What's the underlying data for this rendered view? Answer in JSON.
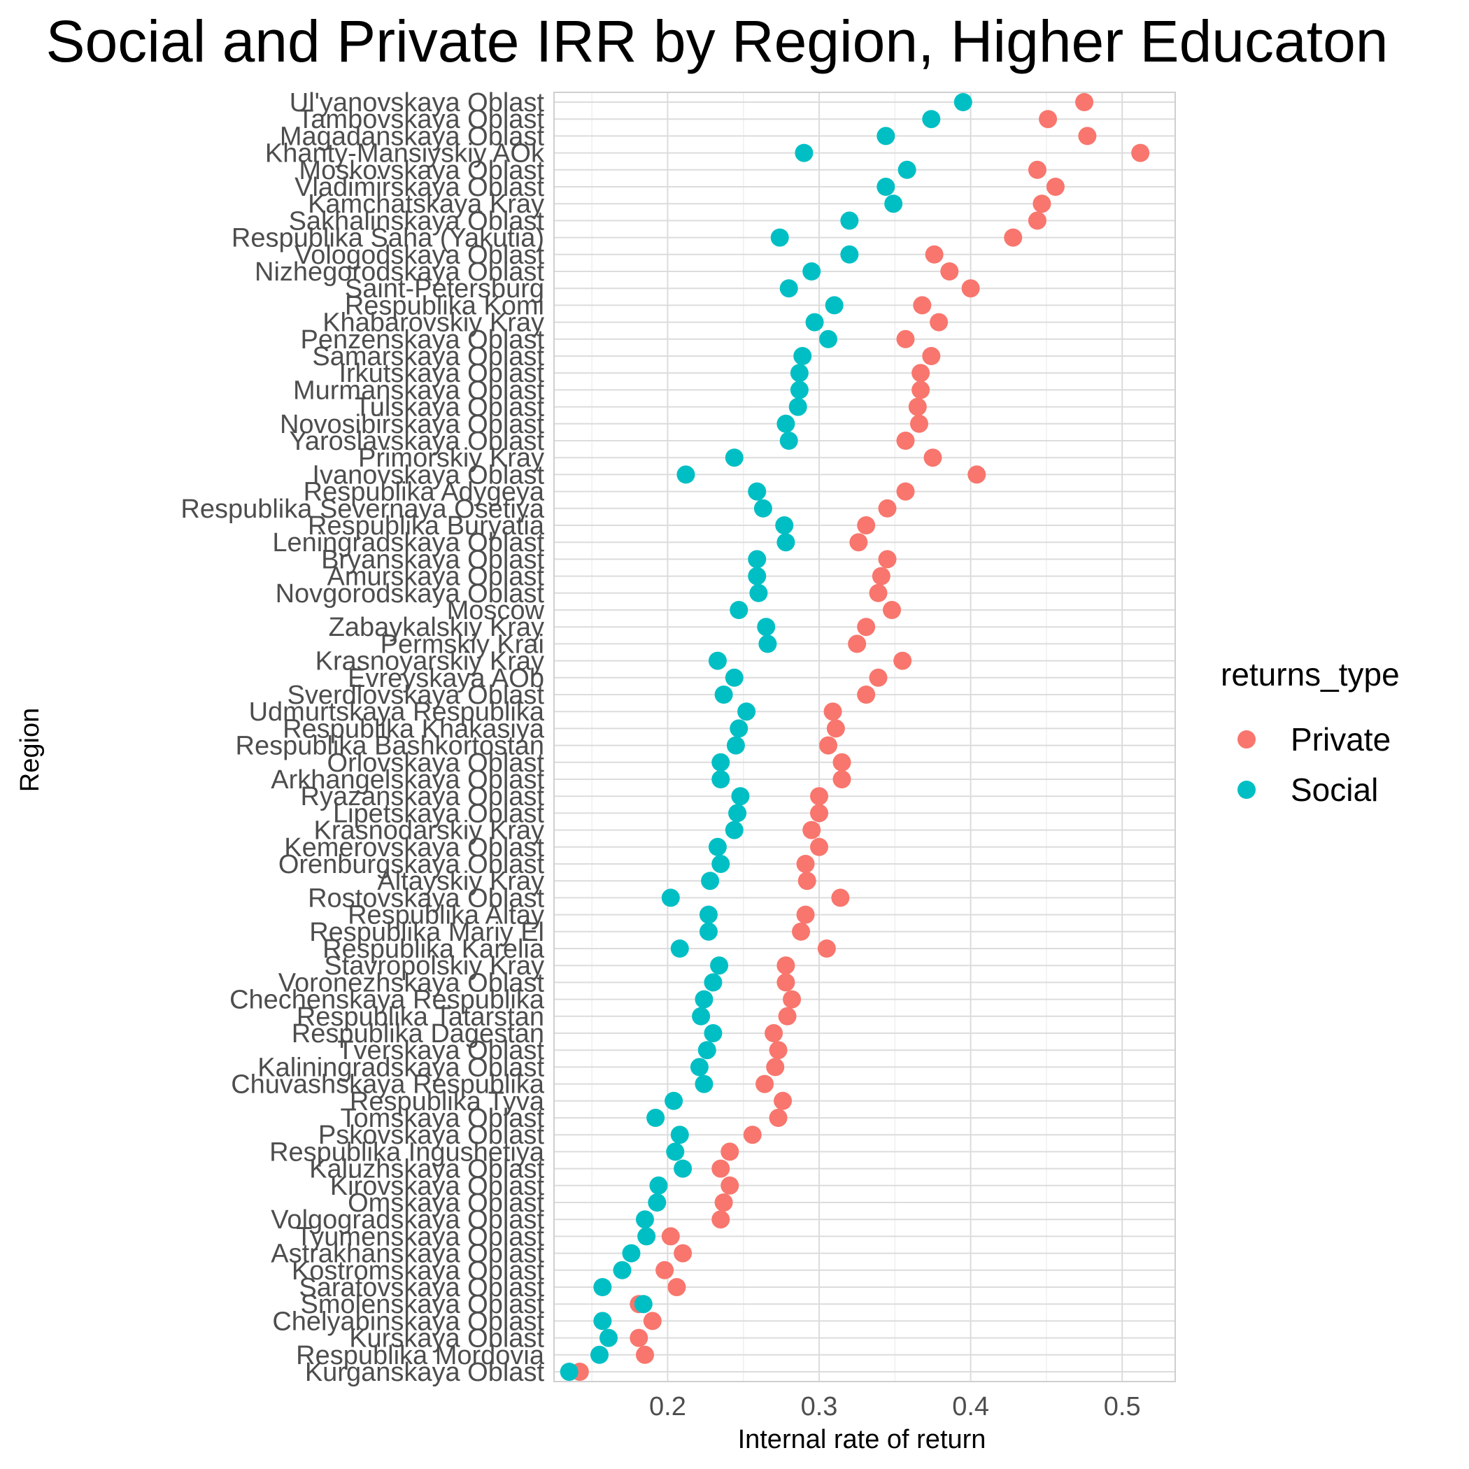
{
  "chart_data": {
    "type": "scatter",
    "title": "Social and Private IRR by Region, Higher Educaton",
    "xlabel": "Internal rate of return",
    "ylabel": "Region",
    "xlim": [
      0.125,
      0.535
    ],
    "x_ticks": [
      0.2,
      0.3,
      0.4,
      0.5
    ],
    "x_tick_labels": [
      "0.2",
      "0.3",
      "0.4",
      "0.5"
    ],
    "grid": true,
    "legend": {
      "title": "returns_type",
      "position": "right",
      "entries": [
        {
          "name": "Private",
          "color": "#F8766D"
        },
        {
          "name": "Social",
          "color": "#00BFC4"
        }
      ]
    },
    "categories": [
      "Ul'yanovskaya Oblast",
      "Tambovskaya Oblast",
      "Magadanskaya Oblast",
      "Khanty-Mansiyskiy AOk",
      "Moskovskaya Oblast",
      "Vladimirskaya Oblast",
      "Kamchatskaya Kray",
      "Sakhalinskaya Oblast",
      "Respublika Saha (Yakutia)",
      "Vologodskaya Oblast",
      "Nizhegorodskaya Oblast",
      "Saint-Petersburg",
      "Respublika Komi",
      "Khabarovskiy Kray",
      "Penzenskaya Oblast",
      "Samarskaya Oblast",
      "Irkutskaya Oblast",
      "Murmanskaya Oblast",
      "Tulskaya Oblast",
      "Novosibirskaya Oblast",
      "Yaroslavskaya Oblast",
      "Primorskiy Kray",
      "Ivanovskaya Oblast",
      "Respublika Adygeya",
      "Respublika Severnaya Osetiya",
      "Respublika Buryatia",
      "Leningradskaya Oblast",
      "Bryanskaya Oblast",
      "Amurskaya Oblast",
      "Novgorodskaya Oblast",
      "Moscow",
      "Zabaykalskiy Kray",
      "Permskiy Krai",
      "Krasnoyarskiy Kray",
      "Evreyskaya AOb",
      "Sverdlovskaya Oblast",
      "Udmurtskaya Respublika",
      "Respublika Khakasiya",
      "Respublika Bashkortostan",
      "Orlovskaya Oblast",
      "Arkhangelskaya Oblast",
      "Ryazanskaya Oblast",
      "Lipetskaya Oblast",
      "Krasnodarskiy Kray",
      "Kemerovskaya Oblast",
      "Orenburgskaya Oblast",
      "Altayskiy Kray",
      "Rostovskaya Oblast",
      "Respublika Altay",
      "Respublika Mariy El",
      "Respublika Karelia",
      "Stavropolskiy Kray",
      "Voronezhskaya Oblast",
      "Chechenskaya Respublika",
      "Respublika Tatarstan",
      "Respublika Dagestan",
      "Tverskaya Oblast",
      "Kaliningradskaya Oblast",
      "Chuvashskaya Respublika",
      "Respublika Tyva",
      "Tomskaya Oblast",
      "Pskovskaya Oblast",
      "Respublika Ingushetiya",
      "Kaluzhskaya Oblast",
      "Kirovskaya Oblast",
      "Omskaya Oblast",
      "Volgogradskaya Oblast",
      "Tyumenskaya Oblast",
      "Astrakhanskaya Oblast",
      "Kostromskaya Oblast",
      "Saratovskaya Oblast",
      "Smolenskaya Oblast",
      "Chelyabinskaya Oblast",
      "Kurskaya Oblast",
      "Respublika Mordovia",
      "Kurganskaya Oblast"
    ],
    "series": [
      {
        "name": "Private",
        "color": "#F8766D",
        "values": [
          0.475,
          0.451,
          0.477,
          0.512,
          0.444,
          0.456,
          0.447,
          0.444,
          0.428,
          0.376,
          0.386,
          0.4,
          0.368,
          0.379,
          0.357,
          0.374,
          0.367,
          0.367,
          0.365,
          0.366,
          0.357,
          0.375,
          0.404,
          0.357,
          0.345,
          0.331,
          0.326,
          0.345,
          0.341,
          0.339,
          0.348,
          0.331,
          0.325,
          0.355,
          0.339,
          0.331,
          0.309,
          0.311,
          0.306,
          0.315,
          0.315,
          0.3,
          0.3,
          0.295,
          0.3,
          0.291,
          0.292,
          0.314,
          0.291,
          0.288,
          0.305,
          0.278,
          0.278,
          0.282,
          0.279,
          0.27,
          0.273,
          0.271,
          0.264,
          0.276,
          0.273,
          0.256,
          0.241,
          0.235,
          0.241,
          0.237,
          0.235,
          0.202,
          0.21,
          0.198,
          0.206,
          0.181,
          0.19,
          0.181,
          0.185,
          0.142
        ]
      },
      {
        "name": "Social",
        "color": "#00BFC4",
        "values": [
          0.395,
          0.374,
          0.344,
          0.29,
          0.358,
          0.344,
          0.349,
          0.32,
          0.274,
          0.32,
          0.295,
          0.28,
          0.31,
          0.297,
          0.306,
          0.289,
          0.287,
          0.287,
          0.286,
          0.278,
          0.28,
          0.244,
          0.212,
          0.259,
          0.263,
          0.277,
          0.278,
          0.259,
          0.259,
          0.26,
          0.247,
          0.265,
          0.266,
          0.233,
          0.244,
          0.237,
          0.252,
          0.247,
          0.245,
          0.235,
          0.235,
          0.248,
          0.246,
          0.244,
          0.233,
          0.235,
          0.228,
          0.202,
          0.227,
          0.227,
          0.208,
          0.234,
          0.23,
          0.224,
          0.222,
          0.23,
          0.226,
          0.221,
          0.224,
          0.204,
          0.192,
          0.208,
          0.205,
          0.21,
          0.194,
          0.193,
          0.185,
          0.186,
          0.176,
          0.17,
          0.157,
          0.184,
          0.157,
          0.161,
          0.155,
          0.135
        ]
      }
    ]
  }
}
